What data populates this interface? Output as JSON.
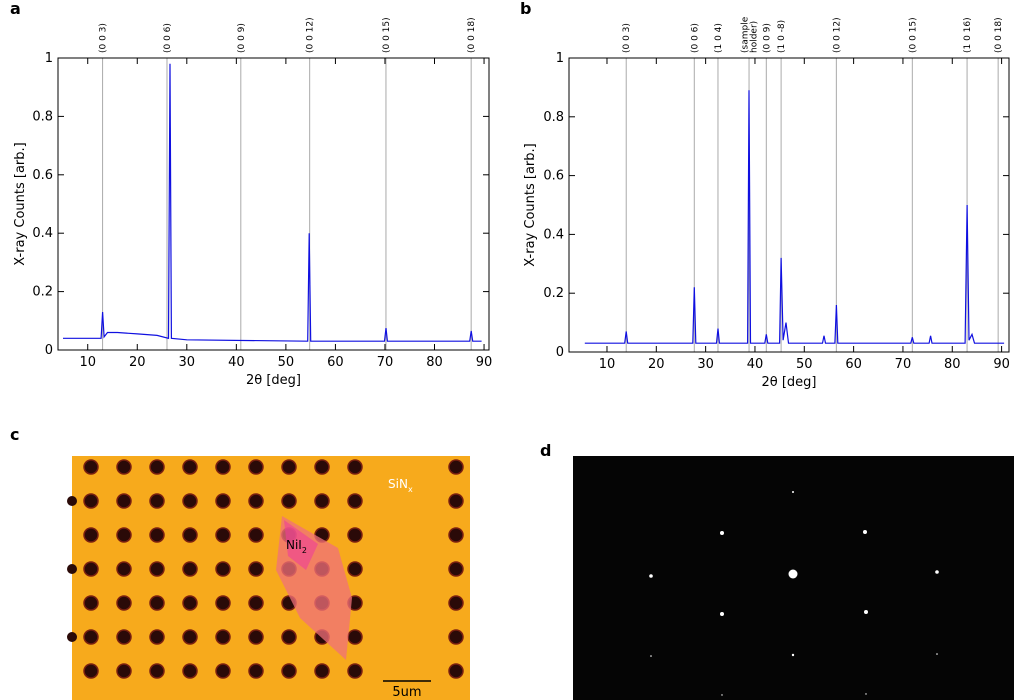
{
  "chart_data": [
    {
      "type": "line",
      "panel_label": "a",
      "xlabel": "2θ [deg]",
      "ylabel": "X-ray Counts [arb.]",
      "color": "#1010e0",
      "xlim": [
        4,
        91
      ],
      "xticks": [
        10,
        20,
        30,
        40,
        50,
        60,
        70,
        80,
        90
      ],
      "ylim": [
        0,
        1
      ],
      "yticks": [
        0,
        0.2,
        0.4,
        0.6,
        0.8,
        1
      ],
      "x": [
        5,
        12.7,
        13.0,
        13.3,
        14,
        16,
        20,
        24,
        26.3,
        26.6,
        26.9,
        30,
        54.4,
        54.7,
        55.0,
        69.9,
        70.2,
        70.5,
        87.1,
        87.4,
        87.7,
        89.5
      ],
      "values": [
        0.04,
        0.04,
        0.13,
        0.045,
        0.06,
        0.06,
        0.055,
        0.05,
        0.04,
        0.98,
        0.04,
        0.035,
        0.03,
        0.4,
        0.03,
        0.03,
        0.075,
        0.03,
        0.03,
        0.065,
        0.03,
        0.03
      ],
      "annotations": [
        {
          "x": 13.0,
          "label": "(0 0 3)"
        },
        {
          "x": 26.0,
          "label": "(0 0 6)"
        },
        {
          "x": 40.9,
          "label": "(0 0 9)"
        },
        {
          "x": 54.8,
          "label": "(0 0 12)"
        },
        {
          "x": 70.2,
          "label": "(0 0 15)"
        },
        {
          "x": 87.4,
          "label": "(0 0 18)"
        }
      ]
    },
    {
      "type": "line",
      "panel_label": "b",
      "xlabel": "2θ [deg]",
      "ylabel": "X-ray Counts [arb.]",
      "color": "#1010e0",
      "xlim": [
        2.3,
        91.5
      ],
      "xticks": [
        10,
        20,
        30,
        40,
        50,
        60,
        70,
        80,
        90
      ],
      "ylim": [
        0,
        1
      ],
      "yticks": [
        0,
        0.2,
        0.4,
        0.6,
        0.8,
        1
      ],
      "x": [
        5.5,
        13.6,
        13.9,
        14.2,
        27.4,
        27.7,
        28.0,
        32.2,
        32.5,
        32.8,
        38.5,
        38.8,
        39.1,
        42.0,
        42.3,
        42.6,
        45.0,
        45.3,
        45.7,
        46.3,
        46.8,
        53.7,
        54,
        54.3,
        56.2,
        56.5,
        56.8,
        71.6,
        71.9,
        72.2,
        75.3,
        75.6,
        75.9,
        82.6,
        83.0,
        83.4,
        84.0,
        84.5,
        90.5
      ],
      "values": [
        0.03,
        0.03,
        0.07,
        0.03,
        0.03,
        0.22,
        0.03,
        0.03,
        0.08,
        0.03,
        0.03,
        0.89,
        0.03,
        0.03,
        0.06,
        0.03,
        0.03,
        0.32,
        0.04,
        0.1,
        0.03,
        0.03,
        0.055,
        0.03,
        0.03,
        0.16,
        0.03,
        0.03,
        0.05,
        0.03,
        0.03,
        0.055,
        0.03,
        0.03,
        0.5,
        0.04,
        0.06,
        0.03,
        0.03
      ],
      "annotations": [
        {
          "x": 13.9,
          "label": "(0 0 3)"
        },
        {
          "x": 27.7,
          "label": "(0 0 6)"
        },
        {
          "x": 32.5,
          "label": "(1 0 4)"
        },
        {
          "x": 38.8,
          "label": "(sample\nholder)"
        },
        {
          "x": 42.3,
          "label": "(0 0 9)"
        },
        {
          "x": 45.3,
          "label": "(1 0 -8)"
        },
        {
          "x": 56.5,
          "label": "(0 0 12)"
        },
        {
          "x": 71.9,
          "label": "(0 0 15)"
        },
        {
          "x": 83.0,
          "label": "(1 0 16)"
        },
        {
          "x": 89.3,
          "label": "(0 0 18)"
        }
      ]
    }
  ],
  "panel_c": {
    "label": "c",
    "substrate": {
      "main": "SiN",
      "sub": "x"
    },
    "flake": {
      "main": "NiI",
      "sub": "2"
    },
    "scale_bar": "5um"
  },
  "panel_d": {
    "label": "d"
  }
}
